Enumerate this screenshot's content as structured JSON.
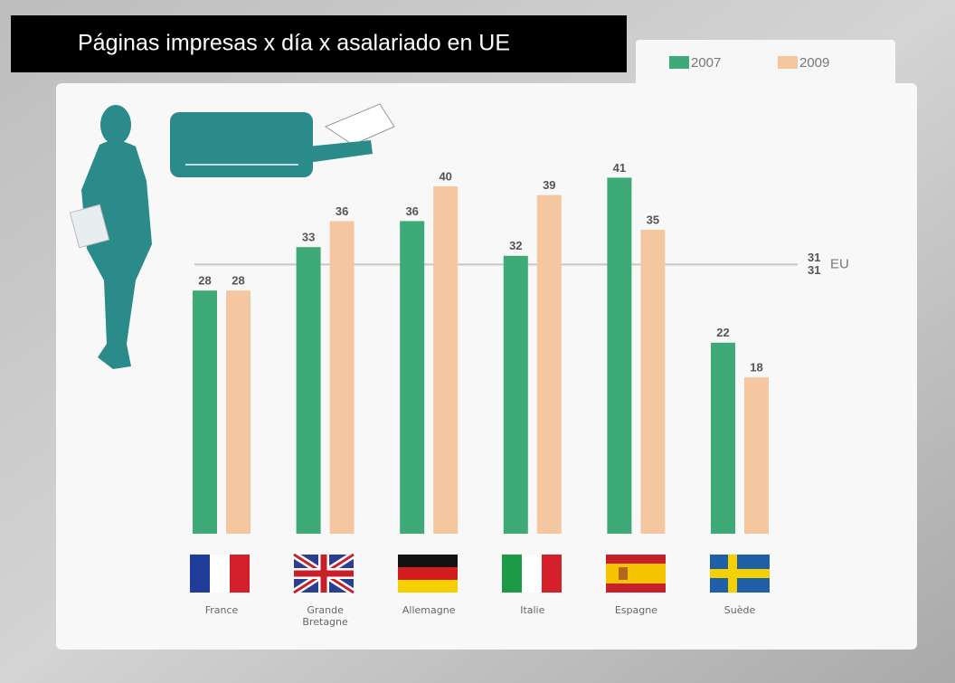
{
  "chart_data": {
    "type": "bar",
    "title": "Páginas impresas x día x asalariado en UE",
    "categories": [
      "France",
      "Grande Bretagne",
      "Allemagne",
      "Italie",
      "Espagne",
      "Suède"
    ],
    "series": [
      {
        "name": "2007",
        "color": "#3daa78",
        "values": [
          28,
          33,
          36,
          32,
          41,
          22
        ]
      },
      {
        "name": "2009",
        "color": "#f4c7a0",
        "values": [
          28,
          36,
          40,
          39,
          35,
          18
        ]
      }
    ],
    "reference_line": {
      "label": "EU",
      "values": [
        31,
        31
      ]
    }
  }
}
